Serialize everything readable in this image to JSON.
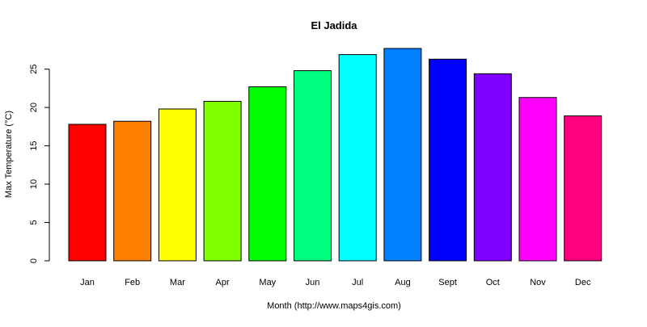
{
  "chart_data": {
    "type": "bar",
    "title": "El Jadida",
    "xlabel": "Month (http://www.maps4gis.com)",
    "ylabel": "Max Temperature (°C)",
    "categories": [
      "Jan",
      "Feb",
      "Mar",
      "Apr",
      "May",
      "Jun",
      "Jul",
      "Aug",
      "Sept",
      "Oct",
      "Nov",
      "Dec"
    ],
    "values": [
      17.8,
      18.2,
      19.8,
      20.8,
      22.7,
      24.8,
      26.9,
      27.7,
      26.3,
      24.4,
      21.3,
      18.9
    ],
    "colors": [
      "#FF0000",
      "#FF8000",
      "#FFFF00",
      "#80FF00",
      "#00FF00",
      "#00FF80",
      "#00FFFF",
      "#0080FF",
      "#0000FF",
      "#8000FF",
      "#FF00FF",
      "#FF0080"
    ],
    "yticks": [
      0,
      5,
      10,
      15,
      20,
      25
    ],
    "ylim": [
      0,
      27.7
    ],
    "grid": false,
    "legend": "none"
  }
}
